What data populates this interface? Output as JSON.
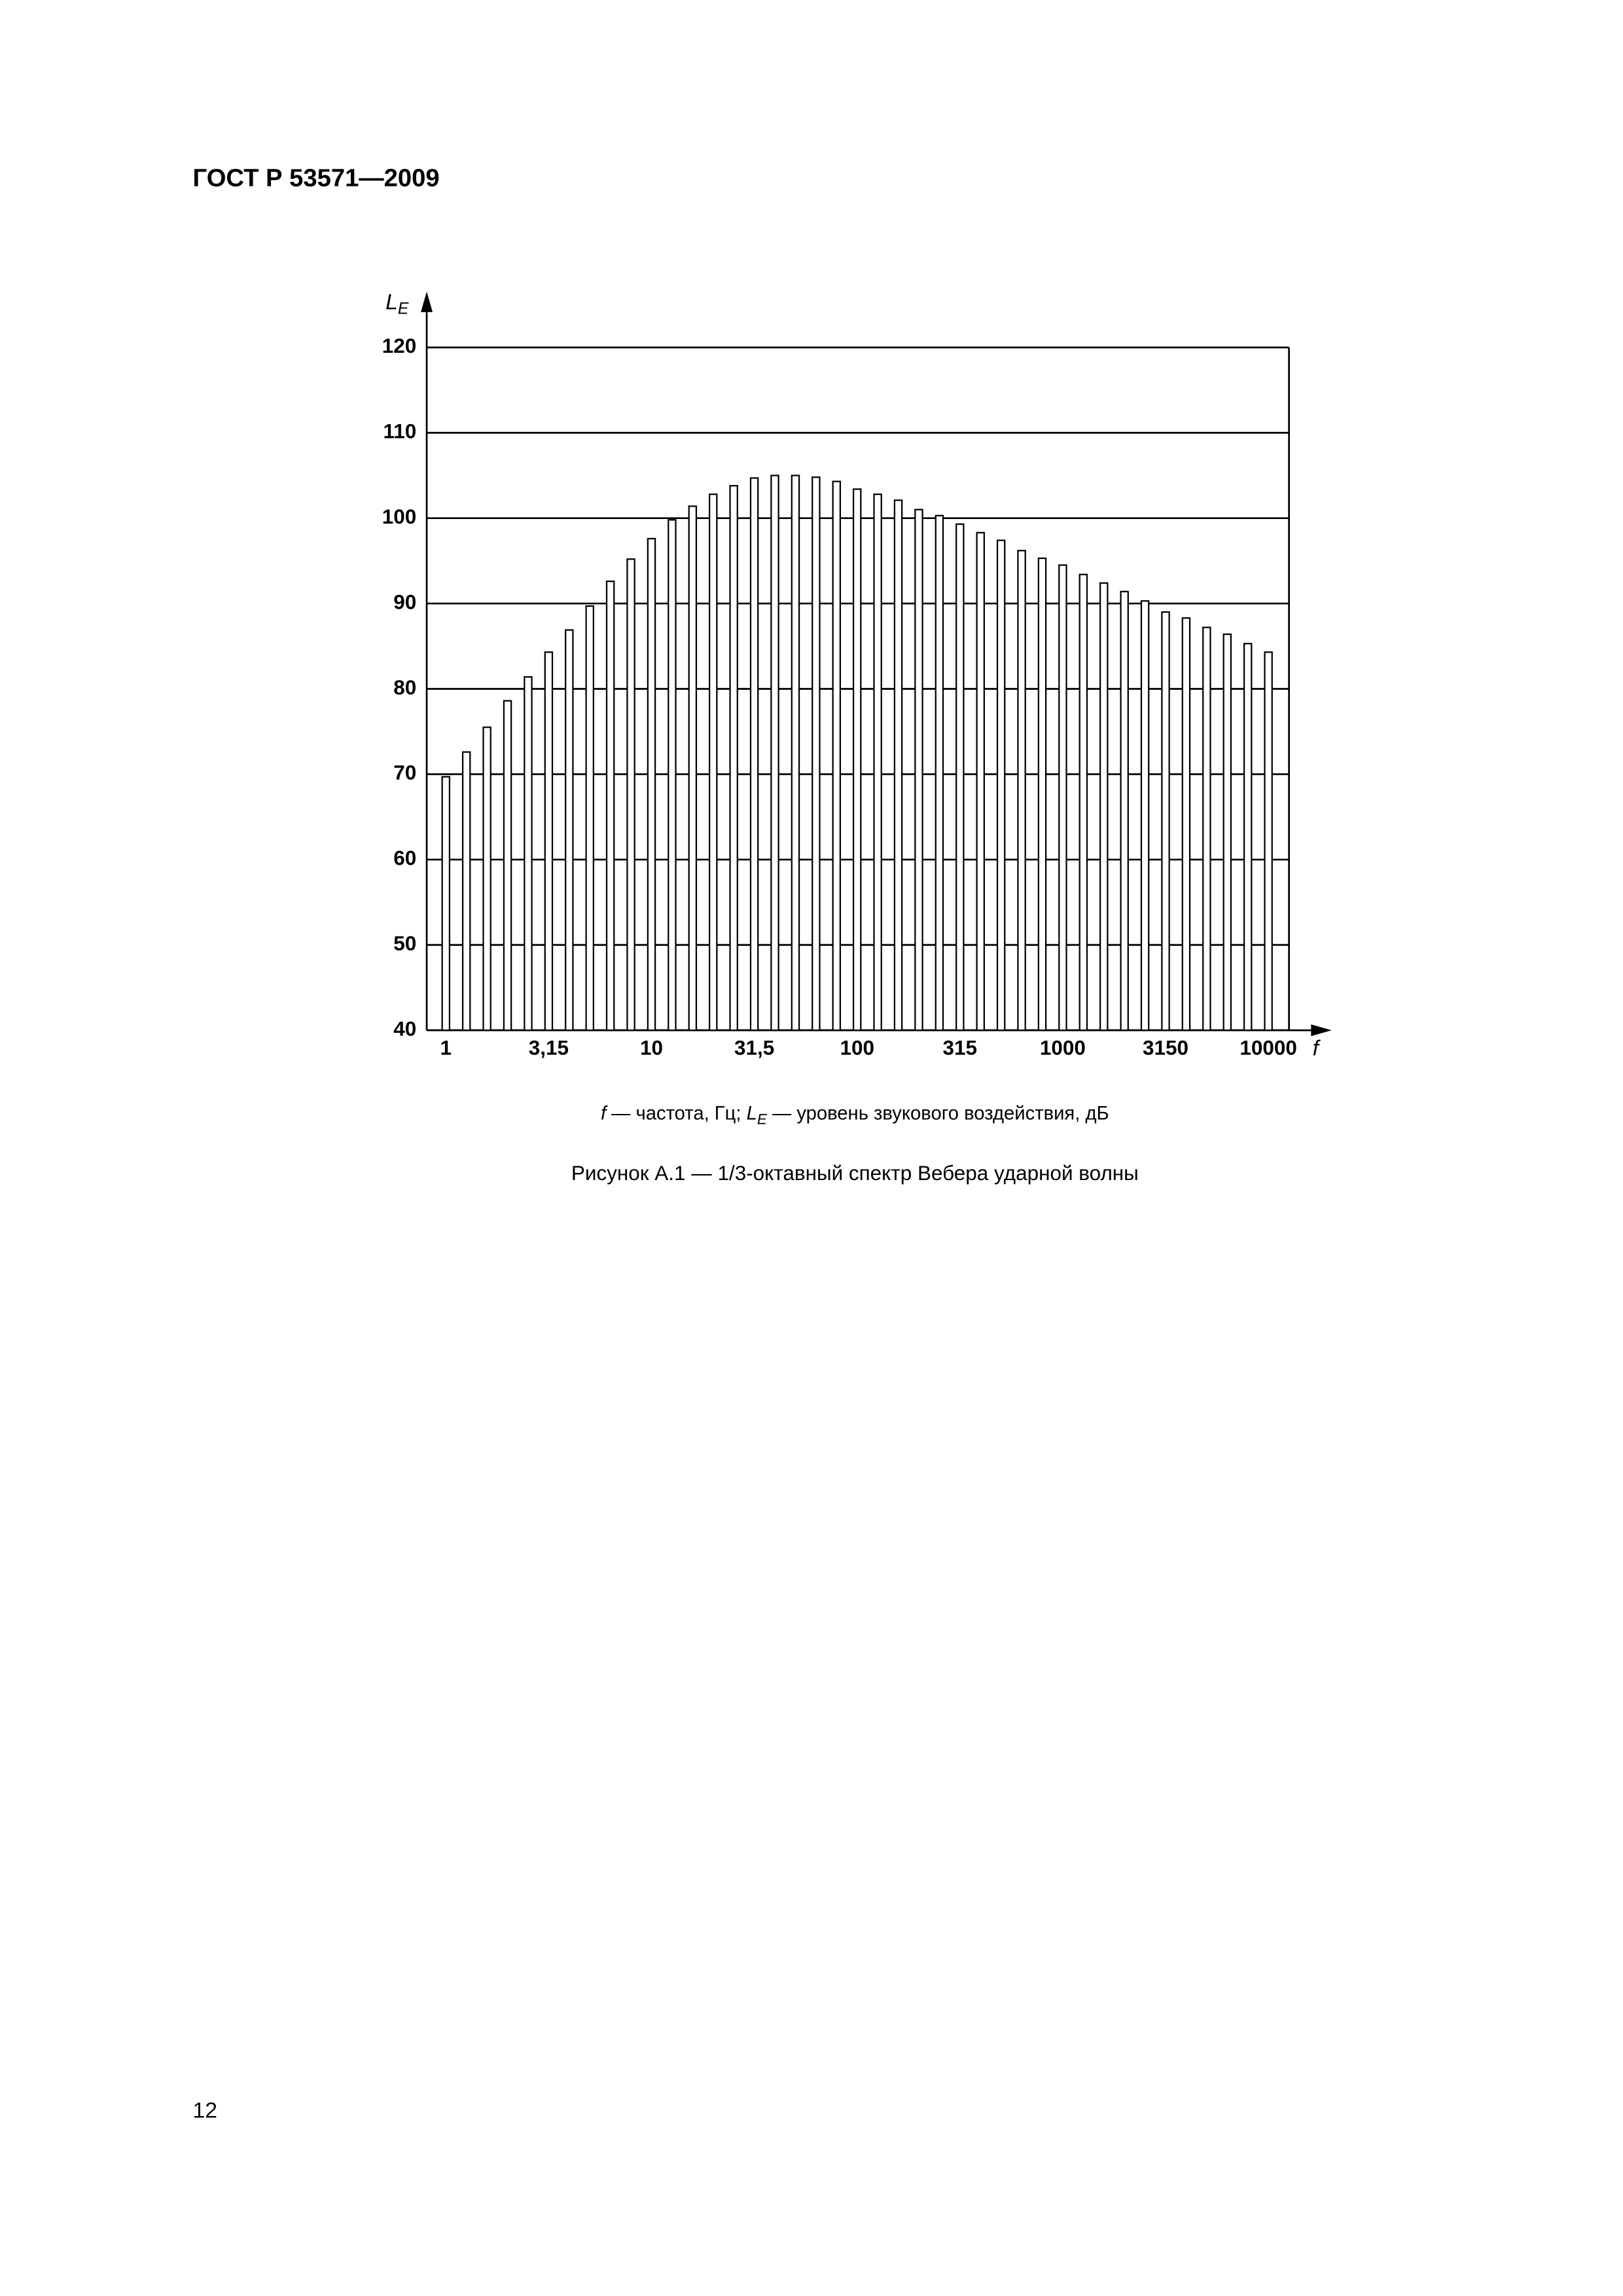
{
  "header": "ГОСТ Р 53571—2009",
  "chart_data": {
    "type": "bar",
    "ylabel": {
      "symbol": "L",
      "subscript": "E"
    },
    "xlabel": "f",
    "categories": [
      "1",
      null,
      null,
      null,
      null,
      "3,15",
      null,
      null,
      null,
      null,
      "10",
      null,
      null,
      null,
      null,
      "31,5",
      null,
      null,
      null,
      null,
      "100",
      null,
      null,
      null,
      null,
      "315",
      null,
      null,
      null,
      null,
      "1000",
      null,
      null,
      null,
      null,
      "3150",
      null,
      null,
      null,
      null,
      "10000"
    ],
    "values": [
      69.7,
      72.6,
      75.5,
      78.6,
      81.4,
      84.3,
      86.9,
      89.7,
      92.6,
      95.2,
      97.6,
      99.8,
      101.4,
      102.8,
      103.8,
      104.7,
      105,
      105,
      104.8,
      104.3,
      103.4,
      102.8,
      102.1,
      101,
      100.3,
      99.3,
      98.3,
      97.4,
      96.2,
      95.3,
      94.5,
      93.4,
      92.4,
      91.4,
      90.3,
      89,
      88.3,
      87.2,
      86.4,
      85.3,
      84.3
    ],
    "color": "#ffffff",
    "ylim": [
      40,
      120
    ],
    "yticks": [
      40,
      50,
      60,
      70,
      80,
      90,
      100,
      110,
      120
    ],
    "grid": true
  },
  "note": [
    "f",
    " — частота, Гц; ",
    "L",
    "E",
    " — уровень звукового воздействия, дБ"
  ],
  "caption": "Рисунок  А.1 — 1/3-октавный спектр Вебера ударной волны",
  "page_number": "12"
}
